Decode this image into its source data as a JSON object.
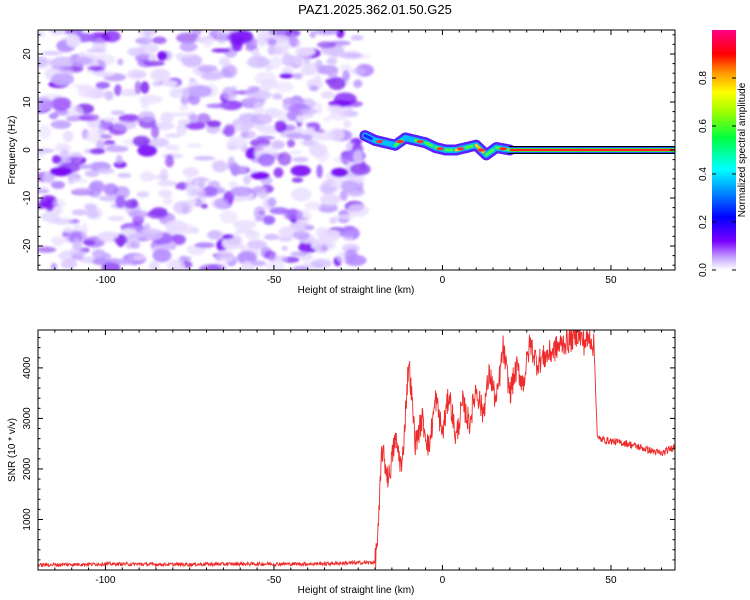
{
  "title": "PAZ1.2025.362.01.50.G25",
  "colors": {
    "snr_line": "#ee2a2a",
    "frame": "#000000",
    "spectrum_noise": "#8a3cf0",
    "spectrum_core": "#ff2222"
  },
  "chart_data": [
    {
      "type": "heatmap",
      "name": "spectrogram",
      "xlabel": "Height of straight line (km)",
      "ylabel": "Frequency (Hz)",
      "xlim": [
        -120,
        69
      ],
      "ylim": [
        -25,
        25
      ],
      "xticks": [
        -100,
        -50,
        0,
        50
      ],
      "xtick_labels": [
        "-100",
        "-50",
        "0",
        "50"
      ],
      "yticks": [
        -20,
        -10,
        0,
        10,
        20
      ],
      "ytick_labels": [
        "-20",
        "-10",
        "0",
        "10",
        "20"
      ],
      "noise_region_x": [
        -120,
        -23
      ],
      "noise_frequency_span": [
        -25,
        25
      ],
      "signal_ridge": {
        "x": [
          -23,
          -20,
          -17,
          -14,
          -11,
          -8,
          -5,
          -2,
          1,
          4,
          7,
          10,
          13,
          16,
          20,
          30,
          40,
          50,
          60,
          69
        ],
        "frequency": [
          3,
          2,
          1.5,
          1,
          2.5,
          2,
          1.5,
          0.5,
          0,
          0,
          0.5,
          1,
          -1,
          0.5,
          0,
          0,
          0,
          0,
          0,
          0
        ],
        "amplitude": [
          0.35,
          0.4,
          0.45,
          0.5,
          0.45,
          0.55,
          0.5,
          0.55,
          0.5,
          0.6,
          0.55,
          0.6,
          0.5,
          0.55,
          1.0,
          1.0,
          1.0,
          1.0,
          1.0,
          1.0
        ]
      },
      "colorbar": {
        "label": "Normalized spectral amplitude",
        "range": [
          0,
          1
        ],
        "ticks": [
          0.0,
          0.2,
          0.4,
          0.6,
          0.8
        ],
        "tick_labels": [
          "0.0",
          "0.2",
          "0.4",
          "0.6",
          "0.8"
        ]
      }
    },
    {
      "type": "line",
      "name": "snr",
      "xlabel": "Height of straight line (km)",
      "ylabel": "SNR (10 * v/v)",
      "xlim": [
        -120,
        69
      ],
      "ylim": [
        0,
        4750
      ],
      "xticks": [
        -100,
        -50,
        0,
        50
      ],
      "xtick_labels": [
        "-100",
        "-50",
        "0",
        "50"
      ],
      "yticks": [
        1000,
        2000,
        3000,
        4000
      ],
      "ytick_labels": [
        "1000",
        "2000",
        "3000",
        "4000"
      ],
      "series": [
        {
          "name": "SNR",
          "x": [
            -120,
            -100,
            -80,
            -60,
            -40,
            -20,
            -19,
            -18,
            -16,
            -14,
            -12,
            -10,
            -8,
            -6,
            -4,
            -2,
            0,
            2,
            4,
            6,
            8,
            10,
            12,
            14,
            16,
            18,
            20,
            22,
            24,
            26,
            28,
            30,
            32,
            34,
            36,
            38,
            40,
            42,
            44,
            45,
            46,
            50,
            55,
            60,
            65,
            69
          ],
          "y": [
            100,
            120,
            110,
            120,
            120,
            150,
            800,
            2400,
            1800,
            2600,
            2000,
            4150,
            2500,
            3000,
            2400,
            3400,
            2700,
            3500,
            2600,
            3300,
            2900,
            3600,
            3100,
            3900,
            3300,
            4400,
            3500,
            4000,
            3700,
            4500,
            4100,
            4200,
            4300,
            4400,
            4500,
            4550,
            4700,
            4500,
            4600,
            4400,
            2600,
            2550,
            2500,
            2400,
            2300,
            2450
          ]
        }
      ]
    }
  ]
}
